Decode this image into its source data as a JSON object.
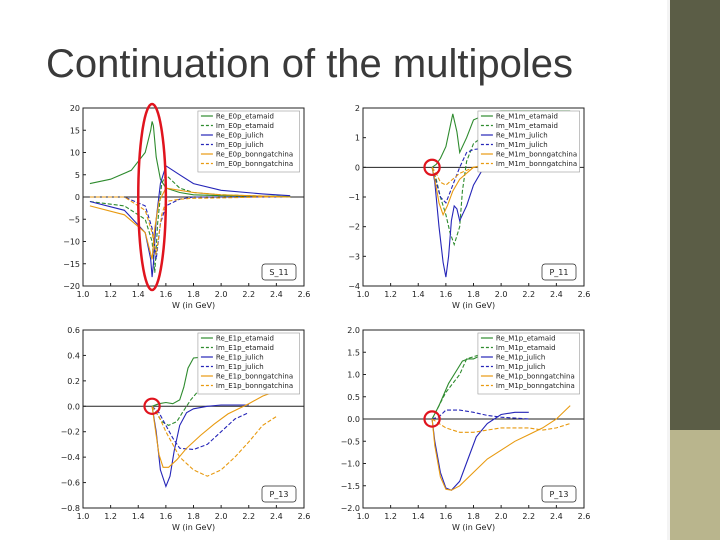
{
  "slide": {
    "title": "Continuation of the multipoles"
  },
  "theme": {
    "bar_dark": "#5b5d46",
    "bar_light": "#b9b58d",
    "highlight": "#e0141e"
  },
  "chart_data": [
    {
      "type": "line",
      "tag": "S_11",
      "xlabel": "W (in GeV)",
      "xlim": [
        1.0,
        2.6
      ],
      "ylim": [
        -20,
        20
      ],
      "xticks": [
        "1.0",
        "1.2",
        "1.4",
        "1.6",
        "1.8",
        "2.0",
        "2.2",
        "2.4",
        "2.6"
      ],
      "yticks": [
        "20",
        "15",
        "10",
        "5",
        "0",
        "−5",
        "−10",
        "−15",
        "−20"
      ],
      "highlight": {
        "kind": "ellipse",
        "x": 1.5,
        "y": 0,
        "rx": 0.1,
        "ry": 20
      },
      "series": [
        {
          "name": "Re_E0p_etamaid",
          "color": "#2e8b2e",
          "dash": false,
          "x": [
            1.05,
            1.2,
            1.35,
            1.45,
            1.49,
            1.5,
            1.51,
            1.53,
            1.56,
            1.6,
            1.7,
            1.8,
            2.0,
            2.3,
            2.5
          ],
          "y": [
            3,
            4,
            6,
            10,
            15,
            17,
            16,
            9,
            4,
            2,
            1,
            0.5,
            0.3,
            0.2,
            0.1
          ]
        },
        {
          "name": "Im_E0p_etamaid",
          "color": "#2e8b2e",
          "dash": true,
          "x": [
            1.05,
            1.3,
            1.45,
            1.5,
            1.52,
            1.54,
            1.57,
            1.6,
            1.7,
            1.8,
            2.0,
            2.3,
            2.5
          ],
          "y": [
            -1,
            -2,
            -5,
            -10,
            -17,
            -6,
            3,
            5,
            2,
            1,
            0.5,
            0.2,
            0.1
          ]
        },
        {
          "name": "Re_E0p_julich",
          "color": "#2525b8",
          "dash": false,
          "x": [
            1.05,
            1.3,
            1.45,
            1.49,
            1.5,
            1.51,
            1.53,
            1.56,
            1.6,
            1.7,
            1.8,
            2.0,
            2.3,
            2.5
          ],
          "y": [
            -1,
            -3,
            -8,
            -14,
            -18,
            -15,
            -5,
            3,
            7,
            5,
            3,
            1.5,
            0.7,
            0.3
          ]
        },
        {
          "name": "Im_E0p_julich",
          "color": "#2525b8",
          "dash": true,
          "x": [
            1.05,
            1.3,
            1.45,
            1.5,
            1.53,
            1.56,
            1.6,
            1.7,
            1.8,
            2.0,
            2.3,
            2.5
          ],
          "y": [
            0,
            0,
            -2,
            -7,
            -14,
            -6,
            -2,
            -0.5,
            0,
            0,
            0,
            0
          ]
        },
        {
          "name": "Re_E0p_bonngatchina",
          "color": "#e89a10",
          "dash": false,
          "x": [
            1.05,
            1.3,
            1.45,
            1.5,
            1.52,
            1.55,
            1.6,
            1.7,
            1.8,
            2.0,
            2.3,
            2.5
          ],
          "y": [
            -2,
            -4,
            -8,
            -14,
            -7,
            -1,
            2,
            1.5,
            1,
            0.5,
            0.2,
            0
          ]
        },
        {
          "name": "Im_E0p_bonngatchina",
          "color": "#e89a10",
          "dash": true,
          "x": [
            1.05,
            1.3,
            1.45,
            1.5,
            1.53,
            1.57,
            1.6,
            1.7,
            1.8,
            2.0,
            2.3,
            2.5
          ],
          "y": [
            0,
            0,
            -3,
            -8,
            -13,
            -4,
            -1,
            -0.5,
            -0.3,
            -0.2,
            0,
            0
          ]
        }
      ]
    },
    {
      "type": "line",
      "tag": "P_11",
      "xlabel": "W (in GeV)",
      "xlim": [
        1.0,
        2.6
      ],
      "ylim": [
        -4,
        2
      ],
      "xticks": [
        "1.0",
        "1.2",
        "1.4",
        "1.6",
        "1.8",
        "2.0",
        "2.2",
        "2.4",
        "2.6"
      ],
      "yticks": [
        "2",
        "1",
        "0",
        "−1",
        "−2",
        "−3",
        "−4"
      ],
      "highlight": {
        "kind": "circle",
        "x": 1.5,
        "y": 0,
        "r": 0.055
      },
      "series": [
        {
          "name": "Re_M1m_etamaid",
          "color": "#2e8b2e",
          "dash": false,
          "x": [
            1.5,
            1.53,
            1.56,
            1.6,
            1.65,
            1.68,
            1.7,
            1.75,
            1.8,
            1.9,
            2.0,
            2.2,
            2.5
          ],
          "y": [
            0,
            0.1,
            0.3,
            0.7,
            1.8,
            1.2,
            0.5,
            1.0,
            1.6,
            1.8,
            1.9,
            1.9,
            1.9
          ]
        },
        {
          "name": "Im_M1m_etamaid",
          "color": "#2e8b2e",
          "dash": true,
          "x": [
            1.5,
            1.53,
            1.56,
            1.6,
            1.63,
            1.66,
            1.7,
            1.72,
            1.75,
            1.8,
            2.0,
            2.3,
            2.5
          ],
          "y": [
            0,
            -0.4,
            -1.0,
            -1.6,
            -2.2,
            -2.6,
            -2.0,
            -0.8,
            0.2,
            0.8,
            1.5,
            1.6,
            1.6
          ]
        },
        {
          "name": "Re_M1m_julich",
          "color": "#2525b8",
          "dash": false,
          "x": [
            1.5,
            1.52,
            1.55,
            1.58,
            1.6,
            1.62,
            1.64,
            1.66,
            1.68,
            1.7,
            1.73,
            1.75,
            1.8,
            1.9,
            2.0,
            2.2,
            2.5
          ],
          "y": [
            0,
            -0.5,
            -2.0,
            -3.2,
            -3.7,
            -3.0,
            -1.8,
            -1.3,
            -1.4,
            -1.8,
            -1.5,
            -1.3,
            -0.6,
            0.2,
            0.6,
            0.7,
            0.7
          ]
        },
        {
          "name": "Im_M1m_julich",
          "color": "#2525b8",
          "dash": true,
          "x": [
            1.5,
            1.53,
            1.56,
            1.6,
            1.65,
            1.7,
            1.75,
            1.8,
            2.0,
            2.3,
            2.5
          ],
          "y": [
            0,
            -0.5,
            -1.0,
            -1.2,
            -0.6,
            0,
            0.5,
            0.6,
            0.7,
            0.6,
            0.5
          ]
        },
        {
          "name": "Re_M1m_bonngatchina",
          "color": "#e89a10",
          "dash": false,
          "x": [
            1.5,
            1.52,
            1.55,
            1.58,
            1.61,
            1.65,
            1.7,
            1.8,
            1.9,
            2.0,
            2.2,
            2.5
          ],
          "y": [
            0,
            -0.4,
            -1.2,
            -1.6,
            -1.3,
            -0.8,
            -0.4,
            0,
            0.1,
            0.2,
            0.3,
            0.3
          ]
        },
        {
          "name": "Im_M1m_bonngatchina",
          "color": "#e89a10",
          "dash": true,
          "x": [
            1.5,
            1.53,
            1.56,
            1.6,
            1.65,
            1.7,
            1.8,
            2.0,
            2.3,
            2.5
          ],
          "y": [
            0,
            -0.2,
            -0.5,
            -0.6,
            -0.4,
            -0.2,
            0,
            0.1,
            0.1,
            0.1
          ]
        }
      ]
    },
    {
      "type": "line",
      "tag": "P_13",
      "xlabel": "W (in GeV)",
      "xlim": [
        1.0,
        2.6
      ],
      "ylim": [
        -0.8,
        0.6
      ],
      "xticks": [
        "1.0",
        "1.2",
        "1.4",
        "1.6",
        "1.8",
        "2.0",
        "2.2",
        "2.4",
        "2.6"
      ],
      "yticks": [
        "0.6",
        "0.4",
        "0.2",
        "0.0",
        "−0.2",
        "−0.4",
        "−0.6",
        "−0.8"
      ],
      "highlight": {
        "kind": "circle",
        "x": 1.5,
        "y": 0,
        "r": 0.055
      },
      "series": [
        {
          "name": "Re_E1p_etamaid",
          "color": "#2e8b2e",
          "dash": false,
          "x": [
            1.5,
            1.55,
            1.6,
            1.65,
            1.7,
            1.73,
            1.76,
            1.8,
            1.9,
            2.0,
            2.1
          ],
          "y": [
            0,
            0.02,
            0.03,
            0.02,
            0.05,
            0.15,
            0.3,
            0.38,
            0.39,
            0.38,
            0.37
          ]
        },
        {
          "name": "Im_E1p_etamaid",
          "color": "#2e8b2e",
          "dash": true,
          "x": [
            1.5,
            1.53,
            1.57,
            1.62,
            1.68,
            1.72,
            1.78,
            1.85,
            1.95,
            2.05,
            2.2
          ],
          "y": [
            0,
            -0.05,
            -0.12,
            -0.15,
            -0.12,
            -0.05,
            0.05,
            0.14,
            0.2,
            0.22,
            0.22
          ]
        },
        {
          "name": "Re_E1p_julich",
          "color": "#2525b8",
          "dash": false,
          "x": [
            1.5,
            1.53,
            1.56,
            1.6,
            1.63,
            1.66,
            1.7,
            1.75,
            1.8,
            1.9,
            2.0,
            2.1,
            2.2
          ],
          "y": [
            0,
            -0.2,
            -0.5,
            -0.63,
            -0.55,
            -0.35,
            -0.15,
            -0.05,
            -0.02,
            0,
            0.01,
            0.01,
            0.01
          ]
        },
        {
          "name": "Im_E1p_julich",
          "color": "#2525b8",
          "dash": true,
          "x": [
            1.5,
            1.55,
            1.6,
            1.65,
            1.7,
            1.8,
            1.9,
            2.0,
            2.1,
            2.2
          ],
          "y": [
            0,
            -0.05,
            -0.15,
            -0.25,
            -0.33,
            -0.34,
            -0.3,
            -0.2,
            -0.1,
            -0.05
          ]
        },
        {
          "name": "Re_E1p_bonngatchina",
          "color": "#e89a10",
          "dash": false,
          "x": [
            1.5,
            1.52,
            1.55,
            1.58,
            1.62,
            1.68,
            1.75,
            1.85,
            1.95,
            2.05,
            2.2,
            2.3,
            2.4
          ],
          "y": [
            0,
            -0.15,
            -0.38,
            -0.48,
            -0.48,
            -0.42,
            -0.33,
            -0.23,
            -0.14,
            -0.06,
            0.02,
            0.08,
            0.12
          ]
        },
        {
          "name": "Im_E1p_bonngatchina",
          "color": "#e89a10",
          "dash": true,
          "x": [
            1.5,
            1.55,
            1.6,
            1.7,
            1.8,
            1.9,
            2.0,
            2.1,
            2.2,
            2.3,
            2.4
          ],
          "y": [
            0,
            -0.08,
            -0.2,
            -0.4,
            -0.5,
            -0.55,
            -0.5,
            -0.4,
            -0.28,
            -0.15,
            -0.08
          ]
        }
      ]
    },
    {
      "type": "line",
      "tag": "P_13",
      "xlabel": "W (in GeV)",
      "xlim": [
        1.0,
        2.6
      ],
      "ylim": [
        -2.0,
        2.0
      ],
      "xticks": [
        "1.0",
        "1.2",
        "1.4",
        "1.6",
        "1.8",
        "2.0",
        "2.2",
        "2.4",
        "2.6"
      ],
      "yticks": [
        "2.0",
        "1.5",
        "1.0",
        "0.5",
        "0.0",
        "−0.5",
        "−1.0",
        "−1.5",
        "−2.0"
      ],
      "highlight": {
        "kind": "circle",
        "x": 1.5,
        "y": 0,
        "r": 0.055
      },
      "series": [
        {
          "name": "Re_M1p_etamaid",
          "color": "#2e8b2e",
          "dash": false,
          "x": [
            1.5,
            1.55,
            1.62,
            1.68,
            1.72,
            1.76,
            1.8,
            1.9,
            2.0,
            2.1
          ],
          "y": [
            0,
            0.3,
            0.8,
            1.1,
            1.3,
            1.35,
            1.35,
            1.5,
            1.55,
            1.6
          ]
        },
        {
          "name": "Im_M1p_etamaid",
          "color": "#2e8b2e",
          "dash": true,
          "x": [
            1.5,
            1.55,
            1.6,
            1.7,
            1.75,
            1.8,
            1.9,
            2.0,
            2.1
          ],
          "y": [
            0,
            0.3,
            0.6,
            1.0,
            1.35,
            1.4,
            1.5,
            1.6,
            1.6
          ]
        },
        {
          "name": "Re_M1p_julich",
          "color": "#2525b8",
          "dash": false,
          "x": [
            1.5,
            1.52,
            1.56,
            1.6,
            1.64,
            1.7,
            1.76,
            1.82,
            1.9,
            2.0,
            2.1,
            2.2
          ],
          "y": [
            0,
            -0.5,
            -1.2,
            -1.55,
            -1.6,
            -1.4,
            -0.9,
            -0.4,
            -0.1,
            0.1,
            0.15,
            0.15
          ]
        },
        {
          "name": "Im_M1p_julich",
          "color": "#2525b8",
          "dash": true,
          "x": [
            1.5,
            1.55,
            1.6,
            1.7,
            1.8,
            1.9,
            2.0,
            2.1,
            2.2
          ],
          "y": [
            0,
            0.05,
            0.2,
            0.2,
            0.15,
            0.08,
            0.04,
            0.02,
            0
          ]
        },
        {
          "name": "Re_M1p_bonngatchina",
          "color": "#e89a10",
          "dash": false,
          "x": [
            1.5,
            1.52,
            1.56,
            1.6,
            1.64,
            1.7,
            1.8,
            1.9,
            2.0,
            2.1,
            2.2,
            2.3,
            2.4,
            2.5
          ],
          "y": [
            0,
            -0.6,
            -1.3,
            -1.58,
            -1.6,
            -1.5,
            -1.2,
            -0.9,
            -0.7,
            -0.5,
            -0.35,
            -0.2,
            0,
            0.3
          ]
        },
        {
          "name": "Im_M1p_bonngatchina",
          "color": "#e89a10",
          "dash": true,
          "x": [
            1.5,
            1.55,
            1.6,
            1.7,
            1.8,
            1.9,
            2.0,
            2.2,
            2.3,
            2.4,
            2.5
          ],
          "y": [
            0,
            -0.1,
            -0.2,
            -0.3,
            -0.3,
            -0.25,
            -0.2,
            -0.2,
            -0.25,
            -0.2,
            -0.1
          ]
        }
      ]
    }
  ]
}
